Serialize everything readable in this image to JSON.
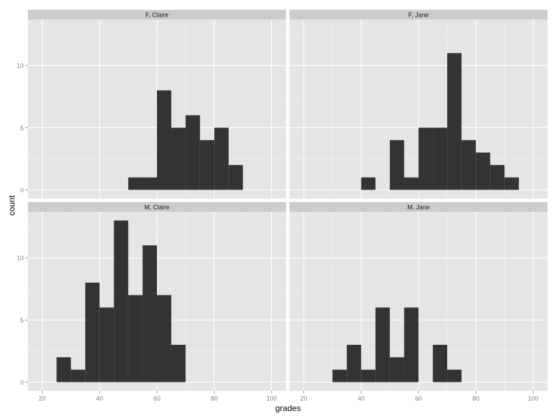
{
  "chart_data": {
    "type": "bar",
    "xlabel": "grades",
    "ylabel": "count",
    "xlim": [
      15,
      105
    ],
    "ylim": [
      -0.7,
      13.7
    ],
    "x_ticks": [
      20,
      40,
      60,
      80,
      100
    ],
    "y_ticks": [
      0,
      5,
      10
    ],
    "bin_width": 5,
    "grid": true,
    "colors": {
      "panel_bg": "#E5E5E5",
      "strip_bg": "#CCCCCC",
      "bar": "#333333",
      "grid_major": "#FFFFFF",
      "grid_minor": "#F2F2F2",
      "tick_text": "#7F7F7F"
    },
    "panels": [
      {
        "title": "F, Claire",
        "bins": [
          [
            50,
            1
          ],
          [
            55,
            1
          ],
          [
            60,
            8
          ],
          [
            65,
            5
          ],
          [
            70,
            6
          ],
          [
            75,
            4
          ],
          [
            80,
            5
          ],
          [
            85,
            2
          ]
        ]
      },
      {
        "title": "F, Jane",
        "bins": [
          [
            40,
            1
          ],
          [
            50,
            4
          ],
          [
            55,
            1
          ],
          [
            60,
            5
          ],
          [
            65,
            5
          ],
          [
            70,
            11
          ],
          [
            75,
            4
          ],
          [
            80,
            3
          ],
          [
            85,
            2
          ],
          [
            90,
            1
          ]
        ]
      },
      {
        "title": "M, Claire",
        "bins": [
          [
            25,
            2
          ],
          [
            30,
            1
          ],
          [
            35,
            8
          ],
          [
            40,
            6
          ],
          [
            45,
            13
          ],
          [
            50,
            7
          ],
          [
            55,
            11
          ],
          [
            60,
            7
          ],
          [
            65,
            3
          ]
        ]
      },
      {
        "title": "M, Jane",
        "bins": [
          [
            30,
            1
          ],
          [
            35,
            3
          ],
          [
            40,
            1
          ],
          [
            45,
            6
          ],
          [
            50,
            2
          ],
          [
            55,
            6
          ],
          [
            65,
            3
          ],
          [
            70,
            1
          ]
        ]
      }
    ]
  }
}
